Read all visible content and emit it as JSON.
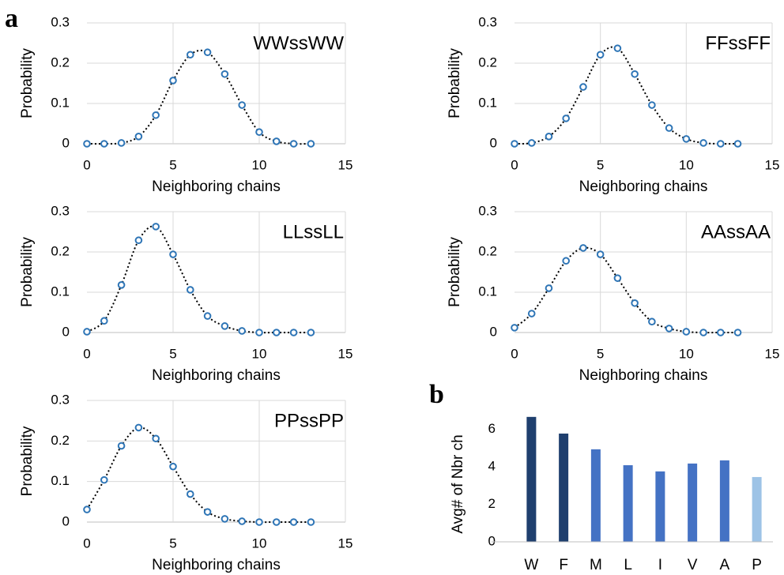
{
  "chart_data": [
    {
      "type": "line",
      "panel_label": "a",
      "title": "WWssWW",
      "xlabel": "Neighboring chains",
      "ylabel": "Probability",
      "x": [
        0,
        1,
        2,
        3,
        4,
        5,
        6,
        7,
        8,
        9,
        10,
        11,
        12,
        13
      ],
      "values": [
        0,
        0,
        0.002,
        0.018,
        0.071,
        0.157,
        0.221,
        0.227,
        0.173,
        0.096,
        0.029,
        0.006,
        0,
        0
      ],
      "color": "#2e75b6",
      "xlim": [
        0,
        15
      ],
      "ylim": [
        0,
        0.3
      ],
      "xticks": [
        0,
        5,
        10,
        15
      ],
      "yticks": [
        0,
        0.1,
        0.2,
        0.3
      ],
      "grid": true
    },
    {
      "type": "line",
      "title": "FFssFF",
      "xlabel": "Neighboring chains",
      "ylabel": "Probability",
      "x": [
        0,
        1,
        2,
        3,
        4,
        5,
        6,
        7,
        8,
        9,
        10,
        11,
        12,
        13
      ],
      "values": [
        0,
        0.002,
        0.018,
        0.063,
        0.141,
        0.221,
        0.237,
        0.173,
        0.096,
        0.039,
        0.012,
        0.002,
        0,
        0
      ],
      "color": "#2e75b6",
      "xlim": [
        0,
        15
      ],
      "ylim": [
        0,
        0.3
      ],
      "xticks": [
        0,
        5,
        10,
        15
      ],
      "yticks": [
        0,
        0.1,
        0.2,
        0.3
      ],
      "grid": true
    },
    {
      "type": "line",
      "title": "LLssLL",
      "xlabel": "Neighboring chains",
      "ylabel": "Probability",
      "x": [
        0,
        1,
        2,
        3,
        4,
        5,
        6,
        7,
        8,
        9,
        10,
        11,
        12,
        13
      ],
      "values": [
        0.002,
        0.029,
        0.118,
        0.229,
        0.263,
        0.194,
        0.106,
        0.041,
        0.016,
        0.004,
        0,
        0,
        0,
        0
      ],
      "color": "#2e75b6",
      "xlim": [
        0,
        15
      ],
      "ylim": [
        0,
        0.3
      ],
      "xticks": [
        0,
        5,
        10,
        15
      ],
      "yticks": [
        0,
        0.1,
        0.2,
        0.3
      ],
      "grid": true
    },
    {
      "type": "line",
      "title": "AAssAA",
      "xlabel": "Neighboring chains",
      "ylabel": "Probability",
      "x": [
        0,
        1,
        2,
        3,
        4,
        5,
        6,
        7,
        8,
        9,
        10,
        11,
        12,
        13
      ],
      "values": [
        0.012,
        0.047,
        0.11,
        0.178,
        0.21,
        0.194,
        0.135,
        0.073,
        0.027,
        0.01,
        0.002,
        0,
        0,
        0
      ],
      "color": "#2e75b6",
      "xlim": [
        0,
        15
      ],
      "ylim": [
        0,
        0.3
      ],
      "xticks": [
        0,
        5,
        10,
        15
      ],
      "yticks": [
        0,
        0.1,
        0.2,
        0.3
      ],
      "grid": true
    },
    {
      "type": "line",
      "title": "PPssPP",
      "xlabel": "Neighboring chains",
      "ylabel": "Probability",
      "x": [
        0,
        1,
        2,
        3,
        4,
        5,
        6,
        7,
        8,
        9,
        10,
        11,
        12,
        13
      ],
      "values": [
        0.031,
        0.104,
        0.188,
        0.233,
        0.206,
        0.137,
        0.069,
        0.025,
        0.008,
        0.002,
        0,
        0,
        0,
        0
      ],
      "color": "#2e75b6",
      "xlim": [
        0,
        15
      ],
      "ylim": [
        0,
        0.3
      ],
      "xticks": [
        0,
        5,
        10,
        15
      ],
      "yticks": [
        0,
        0.1,
        0.2,
        0.3
      ],
      "grid": true
    },
    {
      "type": "bar",
      "panel_label": "b",
      "ylabel": "Avg# of Nbr ch",
      "categories": [
        "W",
        "F",
        "M",
        "L",
        "I",
        "V",
        "A",
        "P"
      ],
      "values": [
        6.67,
        5.78,
        4.94,
        4.09,
        3.76,
        4.18,
        4.35,
        3.46
      ],
      "colors": [
        "#1f3f6e",
        "#1f3f6e",
        "#4472c4",
        "#4472c4",
        "#4472c4",
        "#4472c4",
        "#4472c4",
        "#9dc3e6"
      ],
      "ylim": [
        0,
        7
      ],
      "yticks": [
        0,
        2,
        4,
        6
      ],
      "grid": false
    }
  ]
}
